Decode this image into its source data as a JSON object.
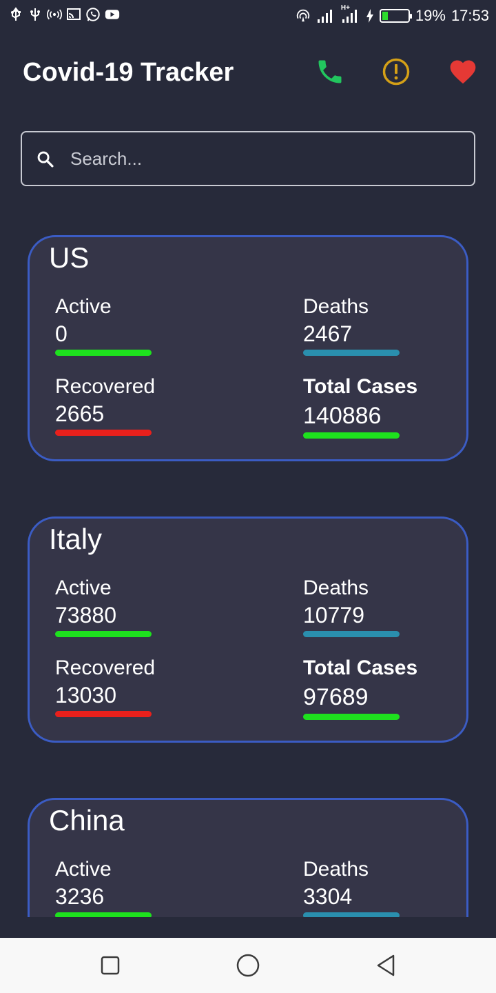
{
  "status_bar": {
    "battery": "19%",
    "time": "17:53",
    "network": "H+",
    "left_icons": [
      "usb-icon",
      "usb-icon",
      "hotspot-icon",
      "cast-icon",
      "whatsapp-icon",
      "youtube-icon"
    ]
  },
  "header": {
    "title": "Covid-19 Tracker",
    "icons": {
      "call": "phone-icon",
      "info": "alert-icon",
      "favorite": "heart-icon"
    },
    "colors": {
      "phone": "#22c55e",
      "alert": "#d4a017",
      "heart": "#e53935"
    }
  },
  "search": {
    "placeholder": "Search..."
  },
  "countries": [
    {
      "name": "US",
      "active_label": "Active",
      "active": "0",
      "deaths_label": "Deaths",
      "deaths": "2467",
      "recovered_label": "Recovered",
      "recovered": "2665",
      "total_label": "Total Cases",
      "total": "140886"
    },
    {
      "name": "Italy",
      "active_label": "Active",
      "active": "73880",
      "deaths_label": "Deaths",
      "deaths": "10779",
      "recovered_label": "Recovered",
      "recovered": "13030",
      "total_label": "Total Cases",
      "total": "97689"
    },
    {
      "name": "China",
      "active_label": "Active",
      "active": "3236",
      "deaths_label": "Deaths",
      "deaths": "3304"
    }
  ],
  "colors": {
    "background": "#272a3a",
    "card": "#353548",
    "card_border": "#3b5cc4",
    "active_bar": "#1ee11e",
    "recovered_bar": "#e9201c",
    "deaths_bar": "#2a8fae",
    "total_bar": "#1ee11e"
  },
  "nav_bar": {
    "buttons": [
      "recents-icon",
      "home-icon",
      "back-icon"
    ]
  }
}
